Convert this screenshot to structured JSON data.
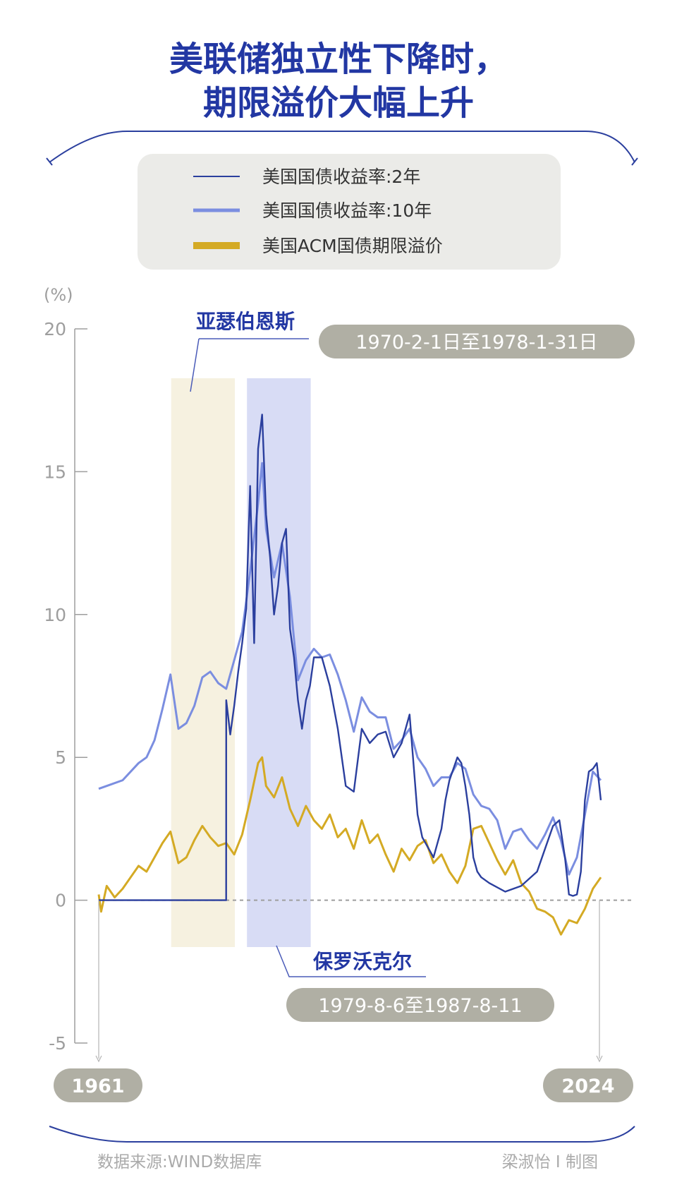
{
  "header": {
    "title_line1": "美联储独立性下降时，",
    "title_line2": "期限溢价大幅上升"
  },
  "legend": [
    {
      "label": "美国国债收益率:2年",
      "color": "#2b3f9e"
    },
    {
      "label": "美国国债收益率:10年",
      "color": "#7b8ee0"
    },
    {
      "label": "美国ACM国债期限溢价",
      "color": "#d4aa24"
    }
  ],
  "annotations": {
    "burns_name": "亚瑟伯恩斯",
    "burns_period": "1970-2-1日至1978-1-31日",
    "volcker_name": "保罗沃克尔",
    "volcker_period": "1979-8-6至1987-8-11",
    "start_year": "1961",
    "end_year": "2024"
  },
  "footer": {
    "source": "数据来源:WIND数据库",
    "credit": "梁淑怡 I 制图"
  },
  "colors": {
    "title": "#2237a3",
    "burns_band": "#f6f1e0",
    "volcker_band": "#d8dcf5",
    "pill_bg": "#b0afa4",
    "legend_bg": "#ebebe8",
    "axis": "#9e9e9e"
  },
  "chart_data": {
    "type": "line",
    "title": "美联储独立性下降时，期限溢价大幅上升",
    "ylabel": "(%)",
    "ylim": [
      -5,
      20
    ],
    "yticks": [
      20,
      15,
      10,
      5,
      0,
      -5
    ],
    "xlim": [
      1961,
      2024
    ],
    "shaded_periods": [
      {
        "label": "亚瑟伯恩斯",
        "start": 1970.09,
        "end": 1978.08
      },
      {
        "label": "保罗沃克尔",
        "start": 1979.6,
        "end": 1987.6
      }
    ],
    "series": [
      {
        "name": "美国国债收益率:2年",
        "x": [
          1961,
          1976.99,
          1977.0,
          1977.5,
          1978,
          1978.5,
          1979,
          1979.5,
          1980,
          1980.5,
          1981,
          1981.5,
          1982,
          1982.5,
          1983,
          1983.5,
          1984,
          1984.5,
          1985,
          1985.5,
          1986,
          1986.5,
          1987,
          1987.5,
          1988,
          1989,
          1990,
          1991,
          1992,
          1993,
          1994,
          1995,
          1996,
          1997,
          1998,
          1999,
          2000,
          2001,
          2001.6,
          2002,
          2003,
          2004,
          2004.5,
          2005,
          2006,
          2006.5,
          2007,
          2007.5,
          2008,
          2008.5,
          2008.99,
          2009.0,
          2010,
          2012,
          2014,
          2016,
          2017,
          2018,
          2018.8,
          2019.5,
          2020,
          2020.5,
          2021,
          2021.5,
          2022,
          2022.5,
          2023,
          2023.5,
          2024
        ],
        "values": [
          0,
          0,
          7.0,
          5.8,
          6.8,
          8.0,
          9.0,
          10.2,
          14.5,
          9.0,
          15.8,
          17.0,
          13.5,
          12.0,
          10.0,
          11.0,
          12.5,
          13.0,
          9.5,
          8.5,
          7.0,
          6.0,
          7.0,
          7.5,
          8.5,
          8.5,
          7.5,
          6.0,
          4.0,
          3.8,
          6.0,
          5.5,
          5.8,
          5.9,
          5.0,
          5.5,
          6.5,
          3.0,
          2.2,
          2.0,
          1.5,
          2.5,
          3.5,
          4.2,
          5.0,
          4.8,
          4.0,
          3.0,
          1.5,
          1.0,
          0.8,
          0.8,
          0.6,
          0.3,
          0.5,
          1.0,
          1.8,
          2.6,
          2.8,
          1.5,
          0.2,
          0.15,
          0.2,
          1.0,
          3.5,
          4.5,
          4.6,
          4.8,
          3.5
        ]
      },
      {
        "name": "美国国债收益率:10年",
        "x": [
          1961,
          1962,
          1964,
          1966,
          1967,
          1968,
          1969,
          1970,
          1971,
          1972,
          1973,
          1974,
          1975,
          1976,
          1977,
          1978,
          1979,
          1980,
          1981,
          1981.5,
          1982,
          1983,
          1984,
          1985,
          1986,
          1987,
          1988,
          1989,
          1990,
          1991,
          1992,
          1993,
          1994,
          1995,
          1996,
          1997,
          1998,
          1999,
          2000,
          2001,
          2002,
          2003,
          2004,
          2005,
          2006,
          2007,
          2008,
          2009,
          2010,
          2011,
          2012,
          2013,
          2014,
          2015,
          2016,
          2017,
          2018,
          2019,
          2020,
          2021,
          2022,
          2023,
          2024
        ],
        "values": [
          3.9,
          4.0,
          4.2,
          4.8,
          5.0,
          5.6,
          6.7,
          7.9,
          6.0,
          6.2,
          6.8,
          7.8,
          8.0,
          7.6,
          7.4,
          8.4,
          9.4,
          11.5,
          13.9,
          15.3,
          13.0,
          11.3,
          12.5,
          10.6,
          7.7,
          8.4,
          8.8,
          8.5,
          8.6,
          7.9,
          7.0,
          5.9,
          7.1,
          6.6,
          6.4,
          6.4,
          5.3,
          5.6,
          6.0,
          5.0,
          4.6,
          4.0,
          4.3,
          4.3,
          4.8,
          4.6,
          3.7,
          3.3,
          3.2,
          2.8,
          1.8,
          2.4,
          2.5,
          2.1,
          1.8,
          2.3,
          2.9,
          2.1,
          0.9,
          1.5,
          3.0,
          4.5,
          4.2
        ]
      },
      {
        "name": "美国ACM国债期限溢价",
        "x": [
          1961,
          1961.3,
          1962,
          1963,
          1964,
          1965,
          1966,
          1967,
          1968,
          1969,
          1970,
          1971,
          1972,
          1973,
          1974,
          1975,
          1976,
          1977,
          1978,
          1979,
          1980,
          1981,
          1981.5,
          1982,
          1983,
          1984,
          1985,
          1986,
          1987,
          1988,
          1989,
          1990,
          1991,
          1992,
          1993,
          1994,
          1995,
          1996,
          1997,
          1998,
          1999,
          2000,
          2001,
          2002,
          2003,
          2004,
          2005,
          2006,
          2007,
          2008,
          2009,
          2010,
          2011,
          2012,
          2013,
          2014,
          2015,
          2016,
          2017,
          2018,
          2019,
          2020,
          2021,
          2022,
          2023,
          2024
        ],
        "values": [
          0.2,
          -0.4,
          0.5,
          0.1,
          0.4,
          0.8,
          1.2,
          1.0,
          1.5,
          2.0,
          2.4,
          1.3,
          1.5,
          2.1,
          2.6,
          2.2,
          1.9,
          2.0,
          1.6,
          2.3,
          3.5,
          4.8,
          5.0,
          4.0,
          3.6,
          4.3,
          3.2,
          2.6,
          3.3,
          2.8,
          2.5,
          3.0,
          2.2,
          2.5,
          1.8,
          2.8,
          2.0,
          2.3,
          1.6,
          1.0,
          1.8,
          1.4,
          1.9,
          2.1,
          1.3,
          1.6,
          1.0,
          0.6,
          1.2,
          2.5,
          2.6,
          2.0,
          1.4,
          0.9,
          1.4,
          0.6,
          0.3,
          -0.3,
          -0.4,
          -0.6,
          -1.2,
          -0.7,
          -0.8,
          -0.3,
          0.4,
          0.8
        ]
      }
    ]
  }
}
